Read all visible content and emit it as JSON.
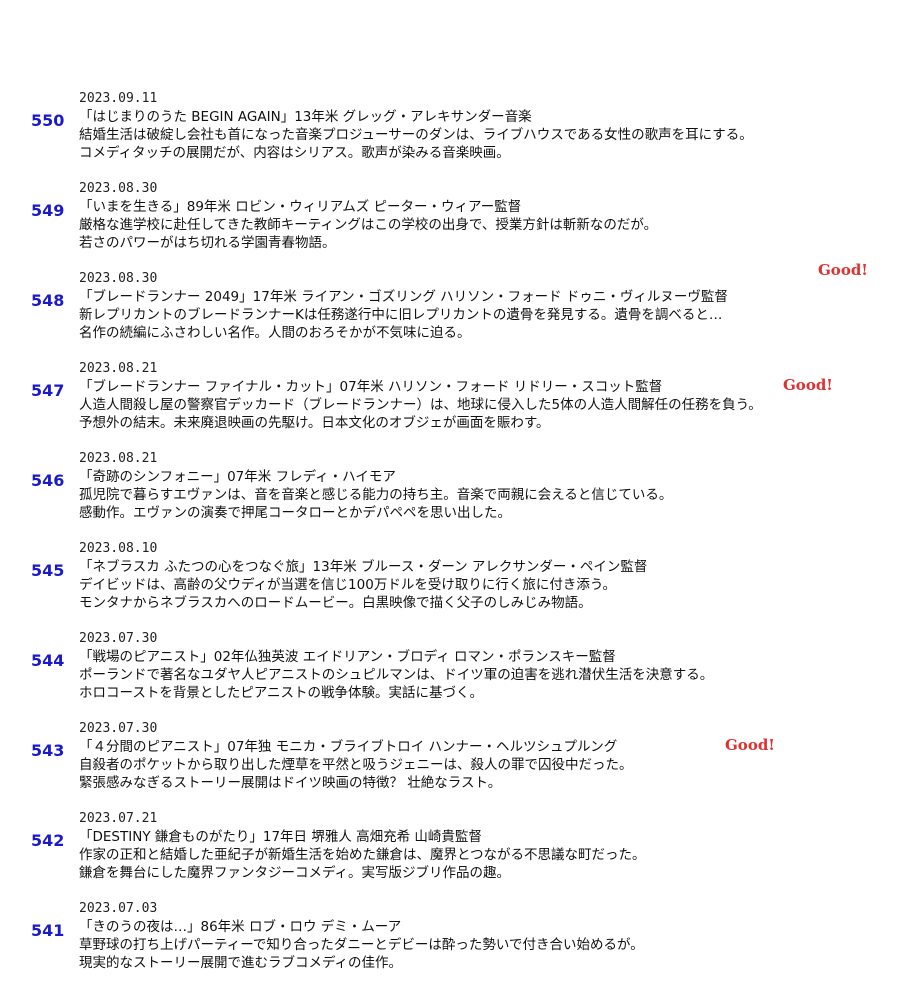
{
  "accent_colors": {
    "entry_number": "#1a1acc",
    "good": "#e03030"
  },
  "entries": [
    {
      "date": "2023.09.11",
      "number": "550",
      "title_line": "「はじまりのうた BEGIN AGAIN」13年米 グレッグ・アレキサンダー音楽",
      "synopsis": "結婚生活は破綻し会社も首になった音楽プロジューサーのダンは、ライブハウスである女性の歌声を耳にする。",
      "comment": "コメディタッチの展開だが、内容はシリアス。歌声が染みる音楽映画。",
      "good": ""
    },
    {
      "date": "2023.08.30",
      "number": "549",
      "title_line": "「いまを生きる」89年米 ロビン・ウィリアムズ ピーター・ウィアー監督",
      "synopsis": "厳格な進学校に赴任してきた教師キーティングはこの学校の出身で、授業方針は斬新なのだが。",
      "comment": "若さのパワーがはち切れる学園青春物語。",
      "good": ""
    },
    {
      "date": "2023.08.30",
      "number": "548",
      "title_line": "「ブレードランナー 2049」17年米 ライアン・ゴズリング ハリソン・フォード ドゥニ・ヴィルヌーヴ監督",
      "synopsis": "新レプリカントのブレードランナーKは任務遂行中に旧レプリカントの遺骨を発見する。遺骨を調べると…",
      "comment": "名作の続編にふさわしい名作。人間のおろそかが不気味に迫る。",
      "good": "Good!"
    },
    {
      "date": "2023.08.21",
      "number": "547",
      "title_line": "「ブレードランナー ファイナル・カット」07年米 ハリソン・フォード リドリー・スコット監督",
      "synopsis": "人造人間殺し屋の警察官デッカード（ブレードランナー）は、地球に侵入した5体の人造人間解任の任務を負う。",
      "comment": "予想外の結末。未来廃退映画の先駆け。日本文化のオブジェが画面を賑わす。",
      "good": "Good!"
    },
    {
      "date": "2023.08.21",
      "number": "546",
      "title_line": "「奇跡のシンフォニー」07年米 フレディ・ハイモア",
      "synopsis": "孤児院で暮らすエヴァンは、音を音楽と感じる能力の持ち主。音楽で両親に会えると信じている。",
      "comment": "感動作。エヴァンの演奏で押尾コータローとかデパペペを思い出した。",
      "good": ""
    },
    {
      "date": "2023.08.10",
      "number": "545",
      "title_line": "「ネブラスカ ふたつの心をつなぐ旅」13年米 ブルース・ダーン アレクサンダー・ペイン監督",
      "synopsis": "デイビッドは、高齢の父ウディが当選を信じ100万ドルを受け取りに行く旅に付き添う。",
      "comment": "モンタナからネブラスカへのロードムービー。白黒映像で描く父子のしみじみ物語。",
      "good": ""
    },
    {
      "date": "2023.07.30",
      "number": "544",
      "title_line": "「戦場のピアニスト」02年仏独英波 エイドリアン・ブロディ ロマン・ポランスキー監督",
      "synopsis": "ポーランドで著名なユダヤ人ピアニストのシュピルマンは、ドイツ軍の迫害を逃れ潜伏生活を決意する。",
      "comment": "ホロコーストを背景としたピアニストの戦争体験。実話に基づく。",
      "good": ""
    },
    {
      "date": "2023.07.30",
      "number": "543",
      "title_line": "「４分間のピアニスト」07年独 モニカ・ブライブトロイ ハンナー・ヘルツシュプルング",
      "synopsis": "自殺者のポケットから取り出した煙草を平然と吸うジェニーは、殺人の罪で囚役中だった。",
      "comment": "緊張感みなぎるストーリー展開はドイツ映画の特徴？ 壮絶なラスト。",
      "good": "Good!"
    },
    {
      "date": "2023.07.21",
      "number": "542",
      "title_line": "「DESTINY 鎌倉ものがたり」17年日 堺雅人 高畑充希 山崎貴監督",
      "synopsis": "作家の正和と結婚した亜紀子が新婚生活を始めた鎌倉は、魔界とつながる不思議な町だった。",
      "comment": "鎌倉を舞台にした魔界ファンタジーコメディ。実写版ジブリ作品の趣。",
      "good": ""
    },
    {
      "date": "2023.07.03",
      "number": "541",
      "title_line": "「きのうの夜は…」86年米 ロブ・ロウ デミ・ムーア",
      "synopsis": "草野球の打ち上げパーティーで知り合ったダニーとデビーは酔った勢いで付き合い始めるが。",
      "comment": "現実的なストーリー展開で進むラブコメディの佳作。",
      "good": ""
    }
  ]
}
